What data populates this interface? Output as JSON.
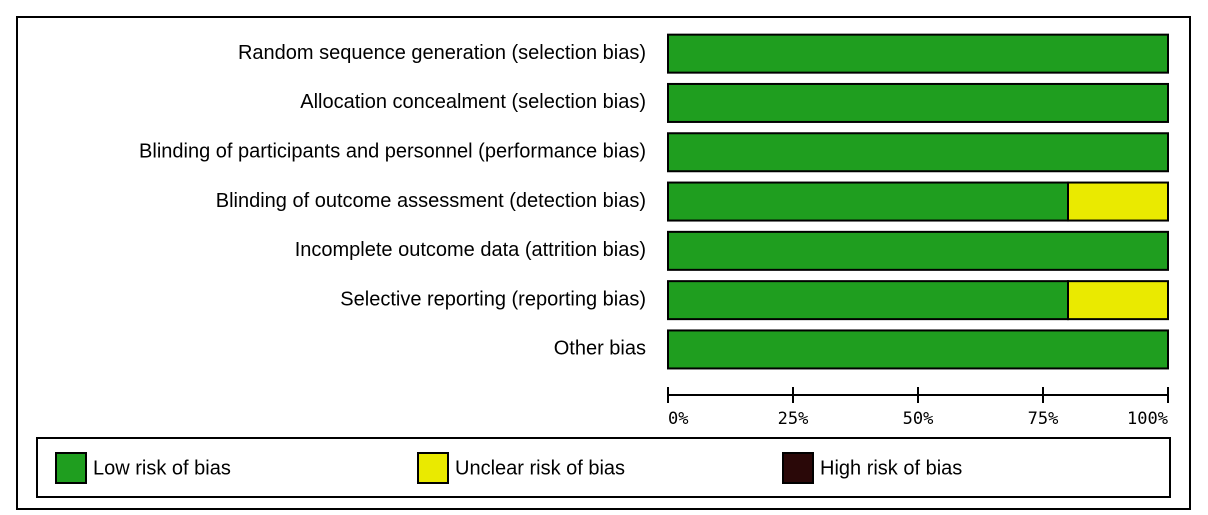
{
  "chart_data": {
    "type": "stacked_barh",
    "categories": [
      "Random sequence generation (selection bias)",
      "Allocation concealment (selection bias)",
      "Blinding of participants and personnel (performance bias)",
      "Blinding of outcome assessment (detection bias)",
      "Incomplete outcome data (attrition bias)",
      "Selective reporting (reporting bias)",
      "Other bias"
    ],
    "series": [
      {
        "name": "Low risk of bias",
        "color": "#1f9e1f",
        "values": [
          100,
          100,
          100,
          80,
          100,
          80,
          100
        ]
      },
      {
        "name": "Unclear risk of bias",
        "color": "#eaea00",
        "values": [
          0,
          0,
          0,
          20,
          0,
          20,
          0
        ]
      },
      {
        "name": "High risk of bias",
        "color": "#2a0808",
        "values": [
          0,
          0,
          0,
          0,
          0,
          0,
          0
        ]
      }
    ],
    "xlim": [
      0,
      100
    ],
    "xticks": [
      {
        "value": 0,
        "label": "0%"
      },
      {
        "value": 25,
        "label": "25%"
      },
      {
        "value": 50,
        "label": "50%"
      },
      {
        "value": 75,
        "label": "75%"
      },
      {
        "value": 100,
        "label": "100%"
      }
    ],
    "legend": "bottom"
  }
}
